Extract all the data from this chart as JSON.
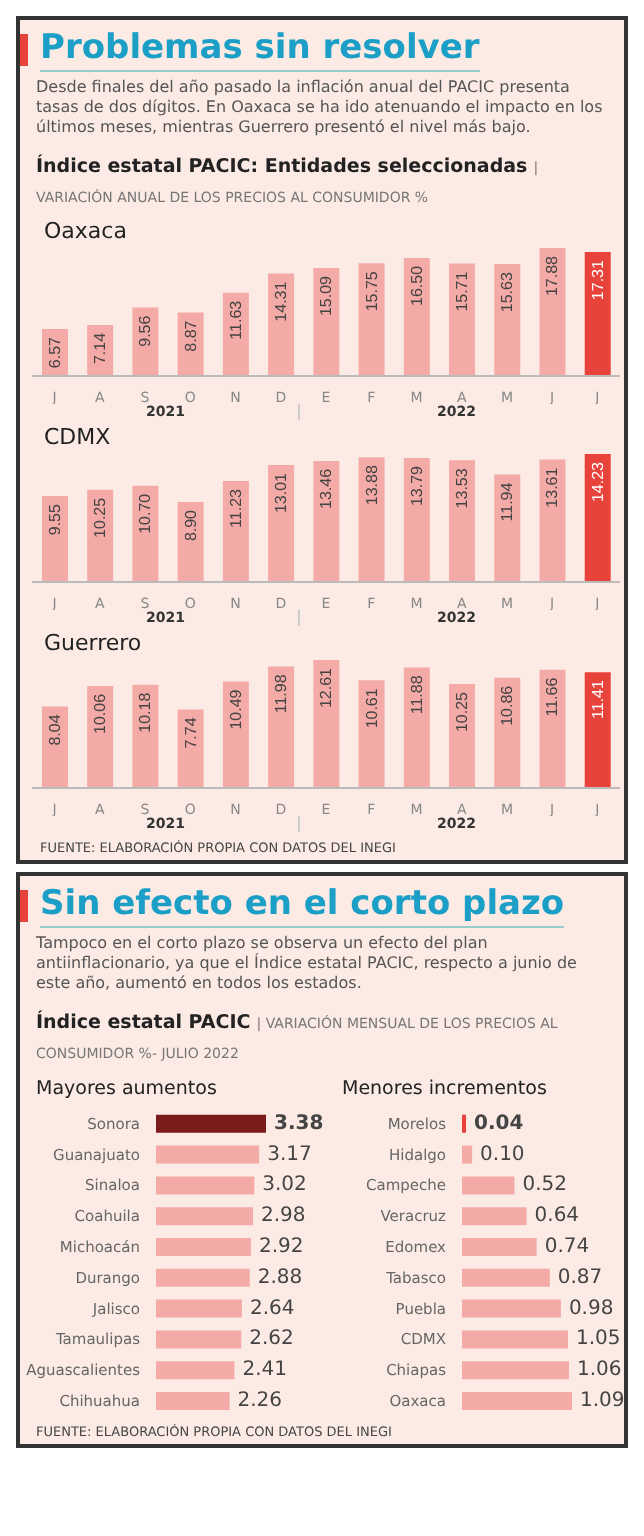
{
  "chart_data": [
    {
      "type": "other",
      "title": "Problemas sin resolver",
      "subtitle": "Desde finales del año pasado la inflación anual del PACIC presenta tasas de dos dígitos. En Oaxaca se ha ido atenuando el impacto en los últimos meses, mientras Guerrero presentó el nivel más bajo.",
      "annotations": [
        "Índice estatal PACIC: Entidades seleccionadas",
        "| VARIACIÓN ANUAL DE LOS PRECIOS AL CONSUMIDOR %"
      ]
    },
    {
      "type": "bar",
      "title": "Oaxaca",
      "categories": [
        "J",
        "A",
        "S",
        "O",
        "N",
        "D",
        "E",
        "F",
        "M",
        "A",
        "M",
        "J",
        "J"
      ],
      "values": [
        6.57,
        7.14,
        9.56,
        8.87,
        11.63,
        14.31,
        15.09,
        15.75,
        16.5,
        15.71,
        15.63,
        17.88,
        17.31
      ],
      "value_labels": [
        "6.57",
        "7.14",
        "9.56",
        "8.87",
        "11.63",
        "14.31",
        "15.09",
        "15.75",
        "16.50",
        "15.71",
        "15.63",
        "17.88",
        "17.31"
      ],
      "colors": [
        "#f4aaa6",
        "#f4aaa6",
        "#f4aaa6",
        "#f4aaa6",
        "#f4aaa6",
        "#f4aaa6",
        "#f4aaa6",
        "#f4aaa6",
        "#f4aaa6",
        "#f4aaa6",
        "#f4aaa6",
        "#f4aaa6",
        "#e8433b"
      ],
      "annotations": [
        "2021",
        "2022"
      ]
    },
    {
      "type": "bar",
      "title": "CDMX",
      "categories": [
        "J",
        "A",
        "S",
        "O",
        "N",
        "D",
        "E",
        "F",
        "M",
        "A",
        "M",
        "J",
        "J"
      ],
      "values": [
        9.55,
        10.25,
        10.7,
        8.9,
        11.23,
        13.01,
        13.46,
        13.88,
        13.79,
        13.53,
        11.94,
        13.61,
        14.23
      ],
      "value_labels": [
        "9.55",
        "10.25",
        "10.70",
        "8.90",
        "11.23",
        "13.01",
        "13.46",
        "13.88",
        "13.79",
        "13.53",
        "11.94",
        "13.61",
        "14.23"
      ],
      "colors": [
        "#f4aaa6",
        "#f4aaa6",
        "#f4aaa6",
        "#f4aaa6",
        "#f4aaa6",
        "#f4aaa6",
        "#f4aaa6",
        "#f4aaa6",
        "#f4aaa6",
        "#f4aaa6",
        "#f4aaa6",
        "#f4aaa6",
        "#e8433b"
      ],
      "annotations": [
        "2021",
        "2022"
      ]
    },
    {
      "type": "bar",
      "title": "Guerrero",
      "categories": [
        "J",
        "A",
        "S",
        "O",
        "N",
        "D",
        "E",
        "F",
        "M",
        "A",
        "M",
        "J",
        "J"
      ],
      "values": [
        8.04,
        10.06,
        10.18,
        7.74,
        10.49,
        11.98,
        12.61,
        10.61,
        11.88,
        10.25,
        10.86,
        11.66,
        11.41
      ],
      "value_labels": [
        "8.04",
        "10.06",
        "10.18",
        "7.74",
        "10.49",
        "11.98",
        "12.61",
        "10.61",
        "11.88",
        "10.25",
        "10.86",
        "11.66",
        "11.41"
      ],
      "colors": [
        "#f4aaa6",
        "#f4aaa6",
        "#f4aaa6",
        "#f4aaa6",
        "#f4aaa6",
        "#f4aaa6",
        "#f4aaa6",
        "#f4aaa6",
        "#f4aaa6",
        "#f4aaa6",
        "#f4aaa6",
        "#f4aaa6",
        "#e8433b"
      ],
      "annotations": [
        "2021",
        "2022",
        "FUENTE: ELABORACIÓN PROPIA CON DATOS DEL INEGI"
      ]
    },
    {
      "type": "other",
      "title": "Sin efecto en el corto plazo",
      "subtitle": "Tampoco en el corto plazo se observa un efecto del plan antiinflacionario, ya que el Índice estatal PACIC, respecto a junio de este año, aumentó en todos los estados.",
      "annotations": [
        "Índice estatal PACIC",
        "| VARIACIÓN MENSUAL DE LOS PRECIOS AL CONSUMIDOR %- JULIO 2022"
      ]
    },
    {
      "type": "bar",
      "orientation": "horizontal",
      "title": "Mayores aumentos",
      "categories": [
        "Sonora",
        "Guanajuato",
        "Sinaloa",
        "Coahuila",
        "Michoacán",
        "Durango",
        "Jalisco",
        "Tamaulipas",
        "Aguascalientes",
        "Chihuahua"
      ],
      "values": [
        3.38,
        3.17,
        3.02,
        2.98,
        2.92,
        2.88,
        2.64,
        2.62,
        2.41,
        2.26
      ],
      "value_labels": [
        "3.38",
        "3.17",
        "3.02",
        "2.98",
        "2.92",
        "2.88",
        "2.64",
        "2.62",
        "2.41",
        "2.26"
      ],
      "colors": [
        "#7b1c1c",
        "#f4aaa6",
        "#f4aaa6",
        "#f4aaa6",
        "#f4aaa6",
        "#f4aaa6",
        "#f4aaa6",
        "#f4aaa6",
        "#f4aaa6",
        "#f4aaa6"
      ]
    },
    {
      "type": "bar",
      "orientation": "horizontal",
      "title": "Menores incrementos",
      "categories": [
        "Morelos",
        "Hidalgo",
        "Campeche",
        "Veracruz",
        "Edomex",
        "Tabasco",
        "Puebla",
        "CDMX",
        "Chiapas",
        "Oaxaca"
      ],
      "values": [
        0.04,
        0.1,
        0.52,
        0.64,
        0.74,
        0.87,
        0.98,
        1.05,
        1.06,
        1.09
      ],
      "value_labels": [
        "0.04",
        "0.10",
        "0.52",
        "0.64",
        "0.74",
        "0.87",
        "0.98",
        "1.05",
        "1.06",
        "1.09"
      ],
      "colors": [
        "#e8433b",
        "#f4aaa6",
        "#f4aaa6",
        "#f4aaa6",
        "#f4aaa6",
        "#f4aaa6",
        "#f4aaa6",
        "#f4aaa6",
        "#f4aaa6",
        "#f4aaa6"
      ],
      "annotations": [
        "FUENTE: ELABORACIÓN PROPIA CON DATOS DEL INEGI"
      ]
    }
  ]
}
